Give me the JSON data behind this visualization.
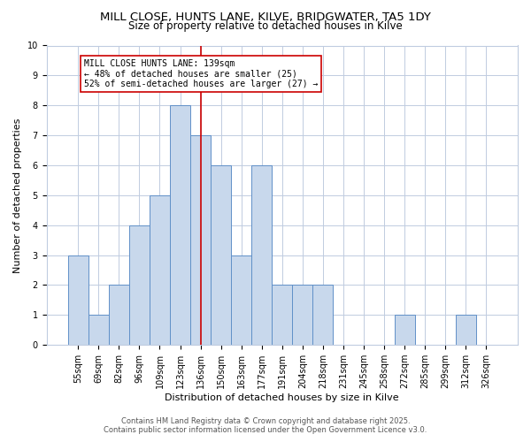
{
  "title_line1": "MILL CLOSE, HUNTS LANE, KILVE, BRIDGWATER, TA5 1DY",
  "title_line2": "Size of property relative to detached houses in Kilve",
  "xlabel": "Distribution of detached houses by size in Kilve",
  "ylabel": "Number of detached properties",
  "categories": [
    "55sqm",
    "69sqm",
    "82sqm",
    "96sqm",
    "109sqm",
    "123sqm",
    "136sqm",
    "150sqm",
    "163sqm",
    "177sqm",
    "191sqm",
    "204sqm",
    "218sqm",
    "231sqm",
    "245sqm",
    "258sqm",
    "272sqm",
    "285sqm",
    "299sqm",
    "312sqm",
    "326sqm"
  ],
  "values": [
    3,
    1,
    2,
    4,
    5,
    8,
    7,
    6,
    3,
    6,
    2,
    2,
    2,
    0,
    0,
    0,
    1,
    0,
    0,
    1,
    0
  ],
  "bar_color": "#c8d8ec",
  "bar_edge_color": "#6090c8",
  "vline_x_index": 6,
  "vline_color": "#cc0000",
  "annotation_text": "MILL CLOSE HUNTS LANE: 139sqm\n← 48% of detached houses are smaller (25)\n52% of semi-detached houses are larger (27) →",
  "annotation_box_color": "#ffffff",
  "annotation_box_edge_color": "#cc0000",
  "ylim": [
    0,
    10
  ],
  "yticks": [
    0,
    1,
    2,
    3,
    4,
    5,
    6,
    7,
    8,
    9,
    10
  ],
  "footer_line1": "Contains HM Land Registry data © Crown copyright and database right 2025.",
  "footer_line2": "Contains public sector information licensed under the Open Government Licence v3.0.",
  "bg_color": "#ffffff",
  "plot_bg_color": "#ffffff",
  "grid_color": "#c0cce0",
  "title1_fontsize": 9.5,
  "title2_fontsize": 8.5,
  "tick_fontsize": 7,
  "axis_label_fontsize": 8,
  "footer_fontsize": 6,
  "ann_fontsize": 7
}
